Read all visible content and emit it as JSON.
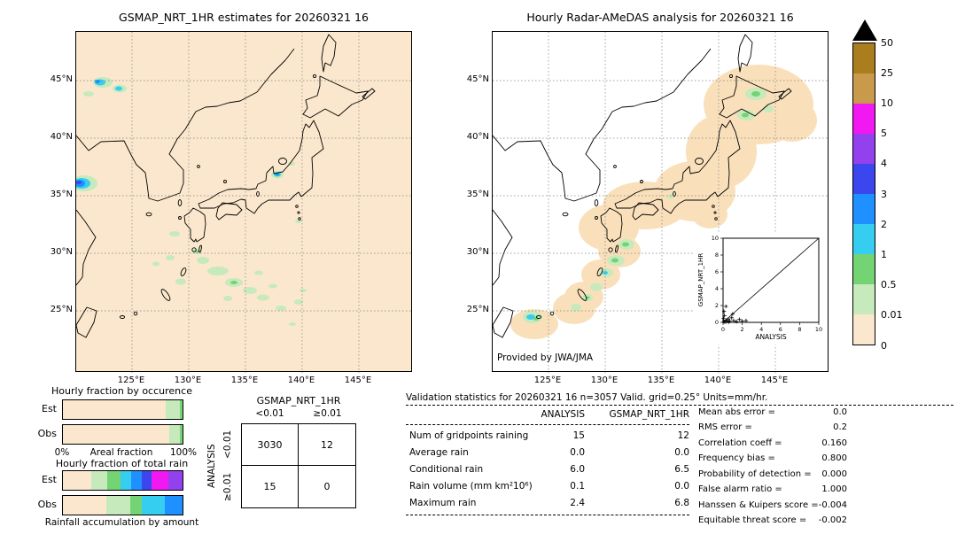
{
  "left_map": {
    "title": "GSMAP_NRT_1HR estimates for 20260321 16",
    "lat_ticks": [
      "45°N",
      "40°N",
      "35°N",
      "30°N",
      "25°N"
    ],
    "lon_ticks": [
      "125°E",
      "130°E",
      "135°E",
      "140°E",
      "145°E"
    ]
  },
  "right_map": {
    "title": "Hourly Radar-AMeDAS analysis for 20260321 16",
    "credit": "Provided by JWA/JMA",
    "lat_ticks": [
      "45°N",
      "40°N",
      "35°N",
      "30°N",
      "25°N"
    ],
    "lon_ticks": [
      "125°E",
      "130°E",
      "135°E",
      "140°E",
      "145°E"
    ]
  },
  "colorbar": {
    "labels": [
      "50",
      "25",
      "10",
      "5",
      "4",
      "3",
      "2",
      "1",
      "0.5",
      "0.01",
      "0"
    ],
    "colors": [
      "#aa7d1e",
      "#c99a4c",
      "#f218f2",
      "#9340ef",
      "#3b46ee",
      "#1e90ff",
      "#35cdf0",
      "#74d474",
      "#c6eabc",
      "#fbe7cd"
    ],
    "overflow_marker": "black-triangle"
  },
  "chart_data": [
    {
      "type": "bar",
      "id": "hourly-fraction-by-occurrence",
      "title": "Hourly fraction by occurence",
      "orientation": "horizontal-stacked",
      "categories": [
        "Est",
        "Obs"
      ],
      "xlabel": "Areal fraction",
      "x_ticks": [
        "0%",
        "100%"
      ],
      "xlim": [
        0,
        100
      ],
      "stacks": [
        [
          {
            "color": "#fbe7cd",
            "pct": 86
          },
          {
            "color": "#c6eabc",
            "pct": 12
          },
          {
            "color": "#74d474",
            "pct": 2
          }
        ],
        [
          {
            "color": "#fbe7cd",
            "pct": 89
          },
          {
            "color": "#c6eabc",
            "pct": 9
          },
          {
            "color": "#74d474",
            "pct": 2
          }
        ]
      ]
    },
    {
      "type": "bar",
      "id": "hourly-fraction-of-total-rain",
      "title": "Hourly fraction of total rain",
      "orientation": "horizontal-stacked",
      "categories": [
        "Est",
        "Obs"
      ],
      "caption": "Rainfall accumulation by amount",
      "xlim": [
        0,
        100
      ],
      "stacks": [
        [
          {
            "color": "#fbe7cd",
            "pct": 24
          },
          {
            "color": "#c6eabc",
            "pct": 13
          },
          {
            "color": "#74d474",
            "pct": 11
          },
          {
            "color": "#35cdf0",
            "pct": 9
          },
          {
            "color": "#1e90ff",
            "pct": 9
          },
          {
            "color": "#3b46ee",
            "pct": 8
          },
          {
            "color": "#f218f2",
            "pct": 14
          },
          {
            "color": "#9340ef",
            "pct": 12
          }
        ],
        [
          {
            "color": "#fbe7cd",
            "pct": 36
          },
          {
            "color": "#c6eabc",
            "pct": 20
          },
          {
            "color": "#74d474",
            "pct": 10
          },
          {
            "color": "#35cdf0",
            "pct": 19
          },
          {
            "color": "#1e90ff",
            "pct": 15
          }
        ]
      ]
    },
    {
      "type": "table",
      "id": "contingency-table",
      "col_group": "GSMAP_NRT_1HR",
      "row_group": "ANALYSIS",
      "col_labels": [
        "<0.01",
        "≥0.01"
      ],
      "row_labels": [
        "<0.01",
        "≥0.01"
      ],
      "values": [
        [
          3030,
          12
        ],
        [
          15,
          0
        ]
      ]
    },
    {
      "type": "table",
      "id": "validation-statistics",
      "title": "Validation statistics for 20260321 16  n=3057 Valid. grid=0.25° Units=mm/hr.",
      "columns": [
        "ANALYSIS",
        "GSMAP_NRT_1HR"
      ],
      "rows": [
        {
          "label": "Num of gridpoints raining",
          "values": [
            "15",
            "12"
          ]
        },
        {
          "label": "Average rain",
          "values": [
            "0.0",
            "0.0"
          ]
        },
        {
          "label": "Conditional rain",
          "values": [
            "6.0",
            "6.5"
          ]
        },
        {
          "label": "Rain volume (mm km²10⁶)",
          "values": [
            "0.1",
            "0.0"
          ]
        },
        {
          "label": "Maximum rain",
          "values": [
            "2.4",
            "6.8"
          ]
        }
      ],
      "scores": [
        {
          "label": "Mean abs error =",
          "value": "0.0"
        },
        {
          "label": "RMS error =",
          "value": "0.2"
        },
        {
          "label": "Correlation coeff =",
          "value": "0.160"
        },
        {
          "label": "Frequency bias =",
          "value": "0.800"
        },
        {
          "label": "Probability of detection =",
          "value": "0.000"
        },
        {
          "label": "False alarm ratio =",
          "value": "1.000"
        },
        {
          "label": "Hanssen & Kuipers score =",
          "value": "-0.004"
        },
        {
          "label": "Equitable threat score =",
          "value": "-0.002"
        }
      ]
    },
    {
      "type": "scatter",
      "id": "gsmap-vs-analysis-inset",
      "xlabel": "ANALYSIS",
      "ylabel": "GSMAP_NRT_1HR",
      "xlim": [
        0,
        10
      ],
      "ylim": [
        0,
        10
      ],
      "ticks": [
        0,
        2,
        4,
        6,
        8,
        10
      ],
      "diagonal": true,
      "points": [
        [
          0.1,
          0.1
        ],
        [
          0.2,
          0.05
        ],
        [
          0.3,
          0.25
        ],
        [
          0.4,
          0.1
        ],
        [
          0.55,
          0.4
        ],
        [
          0.7,
          0.15
        ],
        [
          0.9,
          0.55
        ],
        [
          1.1,
          0.2
        ],
        [
          1.4,
          0.1
        ],
        [
          1.7,
          0.35
        ],
        [
          2.0,
          0.15
        ],
        [
          2.4,
          0.2
        ],
        [
          0.15,
          0.8
        ],
        [
          0.1,
          1.3
        ],
        [
          0.3,
          1.9
        ],
        [
          0.05,
          0.45
        ],
        [
          0.6,
          0.05
        ],
        [
          1.0,
          1.0
        ]
      ]
    }
  ]
}
